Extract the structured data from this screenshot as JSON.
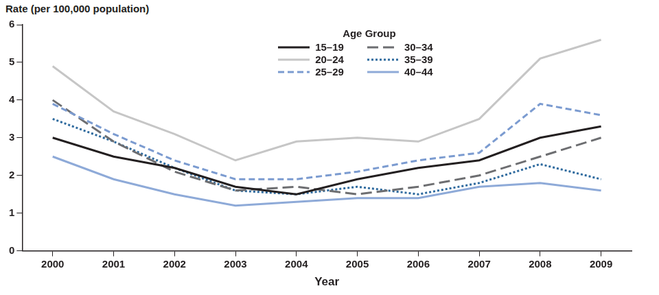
{
  "chart_data": {
    "type": "line",
    "y_title": "Rate (per 100,000 population)",
    "x_title": "Year",
    "legend_title": "Age Group",
    "legend": "top",
    "grid": false,
    "categories": [
      "2000",
      "2001",
      "2002",
      "2003",
      "2004",
      "2005",
      "2006",
      "2007",
      "2008",
      "2009"
    ],
    "ylim": [
      0,
      6
    ],
    "yticks": [
      0,
      1,
      2,
      3,
      4,
      5,
      6
    ],
    "series": [
      {
        "name": "15–19",
        "color": "#231f20",
        "line_style": "solid",
        "values": [
          3.0,
          2.5,
          2.2,
          1.7,
          1.5,
          1.9,
          2.2,
          2.4,
          3.0,
          3.3
        ]
      },
      {
        "name": "20–24",
        "color": "#c6c6c6",
        "line_style": "solid",
        "values": [
          4.9,
          3.7,
          3.1,
          2.4,
          2.9,
          3.0,
          2.9,
          3.5,
          5.1,
          5.6
        ]
      },
      {
        "name": "25–29",
        "color": "#7b9bd0",
        "line_style": "dashed",
        "values": [
          3.9,
          3.1,
          2.4,
          1.9,
          1.9,
          2.1,
          2.4,
          2.6,
          3.9,
          3.6
        ]
      },
      {
        "name": "30–34",
        "color": "#6d6e71",
        "line_style": "long-dashed",
        "values": [
          4.0,
          2.9,
          2.1,
          1.6,
          1.7,
          1.5,
          1.7,
          2.0,
          2.5,
          3.0
        ]
      },
      {
        "name": "35–39",
        "color": "#2e6a9e",
        "line_style": "dotted",
        "values": [
          3.5,
          2.9,
          2.2,
          1.6,
          1.5,
          1.7,
          1.5,
          1.8,
          2.3,
          1.9
        ]
      },
      {
        "name": "40–44",
        "color": "#8eaad8",
        "line_style": "solid",
        "values": [
          2.5,
          1.9,
          1.5,
          1.2,
          1.3,
          1.4,
          1.4,
          1.7,
          1.8,
          1.6
        ]
      }
    ]
  }
}
